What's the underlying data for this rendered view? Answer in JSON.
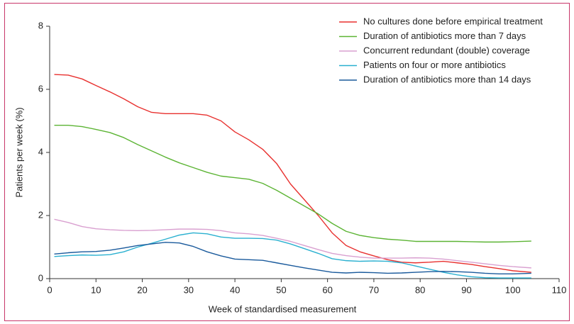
{
  "chart_data": {
    "type": "line",
    "xlabel": "Week of standardised measurement",
    "ylabel": "Patients per week (%)",
    "x": [
      1,
      4,
      7,
      10,
      13,
      16,
      19,
      22,
      25,
      28,
      31,
      34,
      37,
      40,
      43,
      46,
      49,
      52,
      55,
      58,
      61,
      64,
      67,
      70,
      73,
      76,
      79,
      82,
      85,
      88,
      91,
      94,
      97,
      100,
      104
    ],
    "series": [
      {
        "name": "No cultures done before empirical treatment",
        "color": "#e8312f",
        "values": [
          6.47,
          6.45,
          6.33,
          6.12,
          5.92,
          5.7,
          5.45,
          5.27,
          5.23,
          5.23,
          5.23,
          5.18,
          5.0,
          4.65,
          4.4,
          4.1,
          3.65,
          3.0,
          2.5,
          2.0,
          1.45,
          1.05,
          0.85,
          0.72,
          0.6,
          0.52,
          0.5,
          0.52,
          0.55,
          0.5,
          0.45,
          0.38,
          0.32,
          0.25,
          0.2
        ]
      },
      {
        "name": "Duration of antibiotics more than 7 days",
        "color": "#5cb434",
        "values": [
          4.86,
          4.86,
          4.82,
          4.73,
          4.63,
          4.47,
          4.25,
          4.05,
          3.85,
          3.67,
          3.52,
          3.37,
          3.25,
          3.2,
          3.15,
          3.02,
          2.8,
          2.55,
          2.3,
          2.05,
          1.75,
          1.5,
          1.37,
          1.3,
          1.25,
          1.22,
          1.18,
          1.18,
          1.18,
          1.18,
          1.17,
          1.16,
          1.16,
          1.17,
          1.19
        ]
      },
      {
        "name": "Concurrent redundant (double) coverage",
        "color": "#d9a0d0",
        "values": [
          1.88,
          1.78,
          1.65,
          1.58,
          1.55,
          1.53,
          1.52,
          1.53,
          1.55,
          1.57,
          1.57,
          1.56,
          1.52,
          1.45,
          1.42,
          1.37,
          1.28,
          1.18,
          1.05,
          0.92,
          0.8,
          0.73,
          0.68,
          0.65,
          0.65,
          0.65,
          0.66,
          0.65,
          0.62,
          0.57,
          0.52,
          0.47,
          0.42,
          0.38,
          0.34
        ]
      },
      {
        "name": "Patients on four or more antibiotics",
        "color": "#2ab0d0",
        "values": [
          0.7,
          0.73,
          0.75,
          0.74,
          0.76,
          0.85,
          1.0,
          1.12,
          1.25,
          1.38,
          1.45,
          1.42,
          1.32,
          1.28,
          1.28,
          1.27,
          1.22,
          1.1,
          0.95,
          0.8,
          0.63,
          0.57,
          0.55,
          0.56,
          0.55,
          0.5,
          0.4,
          0.3,
          0.2,
          0.12,
          0.06,
          0.03,
          0.02,
          0.02,
          0.02
        ]
      },
      {
        "name": "Duration of antibiotics more than 14 days",
        "color": "#1a5a9c",
        "values": [
          0.78,
          0.82,
          0.85,
          0.86,
          0.9,
          0.97,
          1.05,
          1.1,
          1.15,
          1.13,
          1.02,
          0.85,
          0.72,
          0.62,
          0.6,
          0.58,
          0.5,
          0.42,
          0.34,
          0.27,
          0.2,
          0.18,
          0.2,
          0.19,
          0.17,
          0.18,
          0.2,
          0.22,
          0.23,
          0.22,
          0.2,
          0.17,
          0.15,
          0.15,
          0.17
        ]
      }
    ],
    "xlim": [
      0,
      110
    ],
    "xticks": [
      0,
      10,
      20,
      30,
      40,
      50,
      60,
      70,
      80,
      90,
      100,
      110
    ],
    "ylim": [
      0,
      8
    ],
    "yticks": [
      0,
      2,
      4,
      6,
      8
    ],
    "legend": "upper right"
  }
}
